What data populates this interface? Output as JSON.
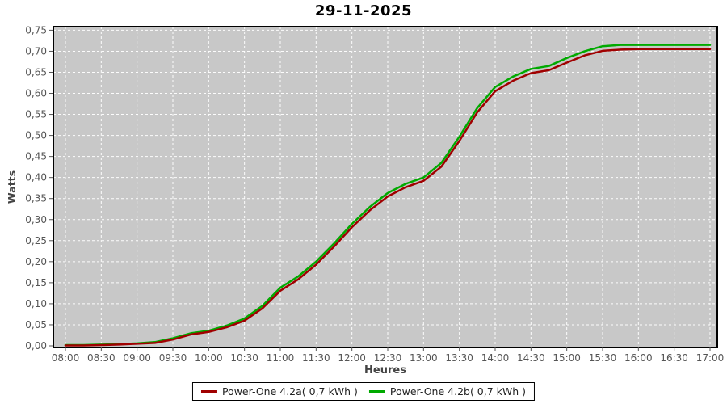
{
  "page": {
    "title": "29-11-2025"
  },
  "chart_data": {
    "type": "line",
    "title": "29-11-2025",
    "xlabel": "Heures",
    "ylabel": "Watts",
    "plot_background": "#c8c8c8",
    "plot_border_color": "#000000",
    "grid_color": "#ffffff",
    "grid_style": "dashed",
    "axis_text_color": "#555555",
    "axis_label_color": "#444444",
    "legend_position": "bottom",
    "ylim": [
      0,
      0.75
    ],
    "y_ticks": [
      {
        "value": 0.0,
        "label": "0,00"
      },
      {
        "value": 0.05,
        "label": "0,05"
      },
      {
        "value": 0.1,
        "label": "0,10"
      },
      {
        "value": 0.15,
        "label": "0,15"
      },
      {
        "value": 0.2,
        "label": "0,20"
      },
      {
        "value": 0.25,
        "label": "0,25"
      },
      {
        "value": 0.3,
        "label": "0,30"
      },
      {
        "value": 0.35,
        "label": "0,35"
      },
      {
        "value": 0.4,
        "label": "0,40"
      },
      {
        "value": 0.45,
        "label": "0,45"
      },
      {
        "value": 0.5,
        "label": "0,50"
      },
      {
        "value": 0.55,
        "label": "0,55"
      },
      {
        "value": 0.6,
        "label": "0,60"
      },
      {
        "value": 0.65,
        "label": "0,65"
      },
      {
        "value": 0.7,
        "label": "0,70"
      },
      {
        "value": 0.75,
        "label": "0,75"
      }
    ],
    "x_ticks": [
      "08:00",
      "08:30",
      "09:00",
      "09:30",
      "10:00",
      "10:30",
      "11:00",
      "11:30",
      "12:00",
      "12:30",
      "13:00",
      "13:30",
      "14:00",
      "14:30",
      "15:00",
      "15:30",
      "16:00",
      "16:30",
      "17:00"
    ],
    "x": [
      "08:00",
      "08:15",
      "08:30",
      "08:45",
      "09:00",
      "09:15",
      "09:30",
      "09:45",
      "10:00",
      "10:15",
      "10:30",
      "10:45",
      "11:00",
      "11:15",
      "11:30",
      "11:45",
      "12:00",
      "12:15",
      "12:30",
      "12:45",
      "13:00",
      "13:15",
      "13:30",
      "13:45",
      "14:00",
      "14:15",
      "14:30",
      "14:45",
      "15:00",
      "15:15",
      "15:30",
      "15:45",
      "16:00",
      "16:15",
      "16:30",
      "16:45",
      "17:00"
    ],
    "series": [
      {
        "name": "Power-One 4.2a( 0,7 kWh )",
        "color": "#a00000",
        "values": [
          0.001,
          0.001,
          0.002,
          0.003,
          0.005,
          0.007,
          0.015,
          0.027,
          0.033,
          0.044,
          0.06,
          0.089,
          0.131,
          0.158,
          0.193,
          0.236,
          0.282,
          0.322,
          0.355,
          0.377,
          0.392,
          0.426,
          0.487,
          0.555,
          0.605,
          0.63,
          0.648,
          0.655,
          0.673,
          0.69,
          0.701,
          0.704,
          0.705,
          0.705,
          0.705,
          0.705,
          0.705
        ]
      },
      {
        "name": "Power-One 4.2b( 0,7 kWh )",
        "color": "#00aa00",
        "values": [
          0.002,
          0.002,
          0.003,
          0.004,
          0.006,
          0.009,
          0.018,
          0.03,
          0.036,
          0.048,
          0.065,
          0.095,
          0.138,
          0.165,
          0.2,
          0.243,
          0.29,
          0.33,
          0.363,
          0.385,
          0.4,
          0.435,
          0.497,
          0.565,
          0.615,
          0.64,
          0.658,
          0.665,
          0.684,
          0.7,
          0.712,
          0.715,
          0.715,
          0.715,
          0.715,
          0.715,
          0.715
        ]
      }
    ]
  }
}
